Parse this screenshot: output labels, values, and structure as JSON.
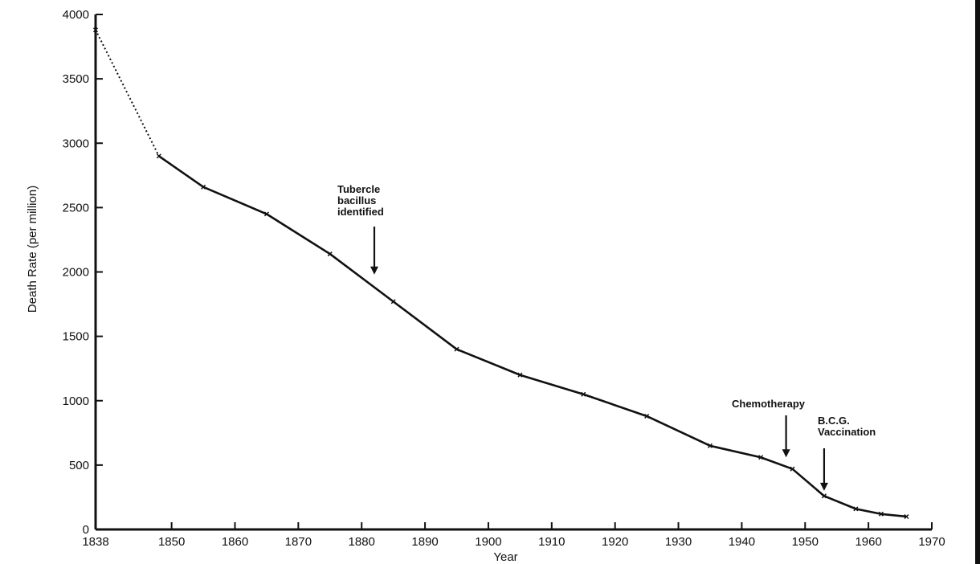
{
  "chart_data": {
    "type": "line",
    "title": "",
    "xlabel": "Year",
    "ylabel": "Death Rate (per million)",
    "xlim": [
      1838,
      1970
    ],
    "ylim": [
      0,
      4000
    ],
    "x_ticks": [
      1838,
      1850,
      1860,
      1870,
      1880,
      1890,
      1900,
      1910,
      1920,
      1930,
      1940,
      1950,
      1960,
      1970
    ],
    "y_ticks": [
      0,
      500,
      1000,
      1500,
      2000,
      2500,
      3000,
      3500,
      4000
    ],
    "grid": false,
    "series": [
      {
        "x": [
          1838,
          1848,
          1855,
          1865,
          1875,
          1885,
          1895,
          1905,
          1915,
          1925,
          1935,
          1943,
          1948,
          1953,
          1958,
          1962,
          1966
        ],
        "y": [
          3880,
          2900,
          2660,
          2450,
          2140,
          1770,
          1400,
          1200,
          1050,
          880,
          650,
          560,
          470,
          260,
          160,
          120,
          100
        ],
        "dotted_segment_x": [
          1838,
          1848
        ]
      }
    ],
    "annotations": [
      {
        "lines": [
          "Tubercle",
          "bacillus",
          "identified"
        ],
        "x": 1882,
        "y_tip": 1980
      },
      {
        "lines": [
          "Chemotherapy"
        ],
        "x": 1947,
        "y_tip": 560
      },
      {
        "lines": [
          "B.C.G.",
          "Vaccination"
        ],
        "x": 1953,
        "y_tip": 300
      }
    ]
  }
}
